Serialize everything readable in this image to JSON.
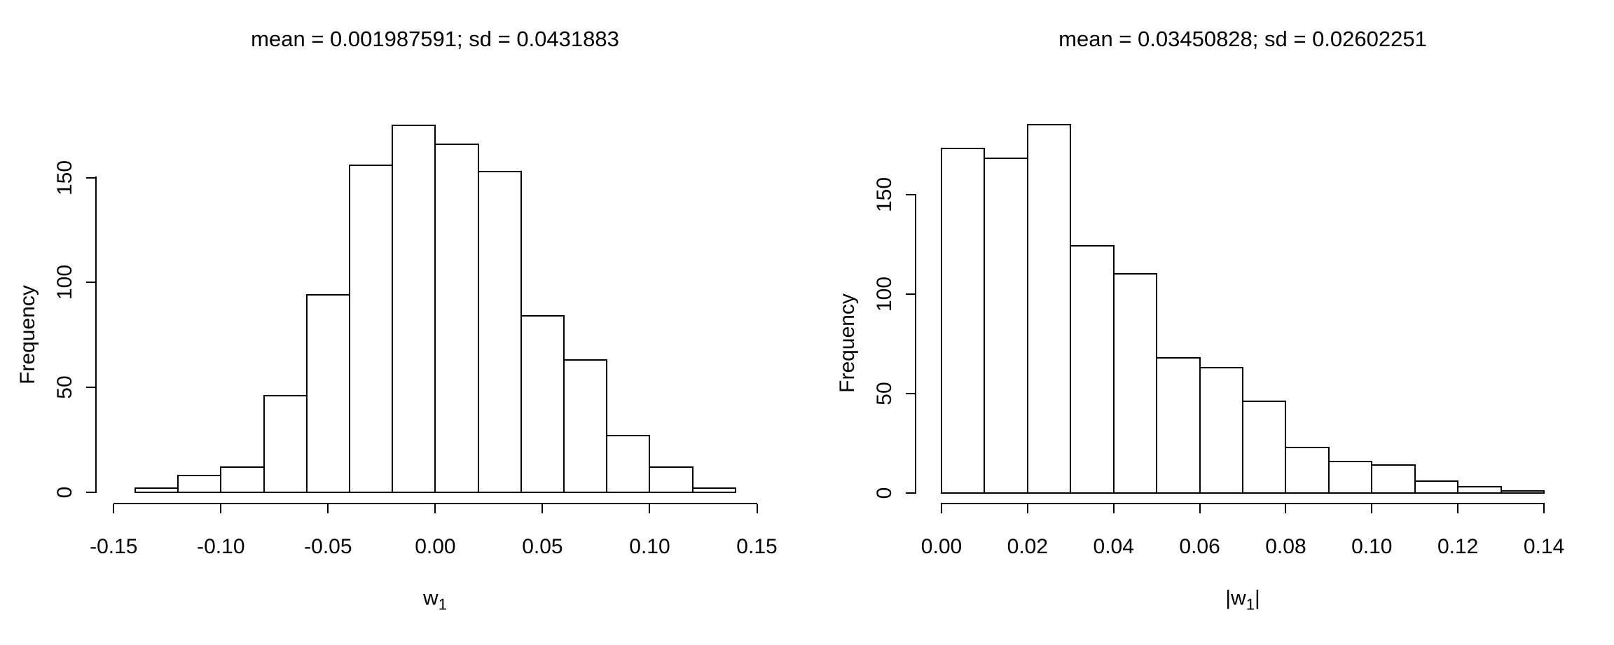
{
  "figure": {
    "background_color": "#ffffff",
    "stroke_color": "#000000",
    "bar_fill_color": "#ffffff",
    "text_color": "#000000"
  },
  "chart_data": [
    {
      "type": "bar",
      "subtype": "histogram",
      "title": "mean = 0.001987591; sd = 0.0431883",
      "xlabel": "w₁",
      "xlabel_parts": {
        "pre": "w",
        "sub": "1",
        "post": ""
      },
      "ylabel": "Frequency",
      "bin_width": 0.02,
      "bin_edges": [
        -0.14,
        -0.12,
        -0.1,
        -0.08,
        -0.06,
        -0.04,
        -0.02,
        0.0,
        0.02,
        0.04,
        0.06,
        0.08,
        0.1,
        0.12,
        0.14
      ],
      "counts": [
        2,
        8,
        12,
        46,
        94,
        156,
        175,
        166,
        153,
        84,
        63,
        27,
        12,
        2
      ],
      "xlim": [
        -0.15,
        0.15
      ],
      "ylim": [
        0,
        175
      ],
      "grid": false,
      "legend": false,
      "x_ticks": [
        {
          "value": -0.15,
          "label": "-0.15"
        },
        {
          "value": -0.1,
          "label": "-0.10"
        },
        {
          "value": -0.05,
          "label": "-0.05"
        },
        {
          "value": 0.0,
          "label": "0.00"
        },
        {
          "value": 0.05,
          "label": "0.05"
        },
        {
          "value": 0.1,
          "label": "0.10"
        },
        {
          "value": 0.15,
          "label": "0.15"
        }
      ],
      "y_ticks": [
        {
          "value": 0,
          "label": "0"
        },
        {
          "value": 50,
          "label": "50"
        },
        {
          "value": 100,
          "label": "100"
        },
        {
          "value": 150,
          "label": "150"
        }
      ]
    },
    {
      "type": "bar",
      "subtype": "histogram",
      "title": "mean = 0.03450828; sd = 0.02602251",
      "xlabel": "|w₁|",
      "xlabel_parts": {
        "pre": "|w",
        "sub": "1",
        "post": "|"
      },
      "ylabel": "Frequency",
      "bin_width": 0.01,
      "bin_edges": [
        0.0,
        0.01,
        0.02,
        0.03,
        0.04,
        0.05,
        0.06,
        0.07,
        0.08,
        0.09,
        0.1,
        0.11,
        0.12,
        0.13,
        0.14
      ],
      "counts": [
        173,
        168,
        185,
        124,
        110,
        68,
        63,
        46,
        23,
        16,
        14,
        6,
        3,
        1
      ],
      "xlim": [
        0.0,
        0.14
      ],
      "ylim": [
        0,
        185
      ],
      "grid": false,
      "legend": false,
      "x_ticks": [
        {
          "value": 0.0,
          "label": "0.00"
        },
        {
          "value": 0.02,
          "label": "0.02"
        },
        {
          "value": 0.04,
          "label": "0.04"
        },
        {
          "value": 0.06,
          "label": "0.06"
        },
        {
          "value": 0.08,
          "label": "0.08"
        },
        {
          "value": 0.1,
          "label": "0.10"
        },
        {
          "value": 0.12,
          "label": "0.12"
        },
        {
          "value": 0.14,
          "label": "0.14"
        }
      ],
      "y_ticks": [
        {
          "value": 0,
          "label": "0"
        },
        {
          "value": 50,
          "label": "50"
        },
        {
          "value": 100,
          "label": "100"
        },
        {
          "value": 150,
          "label": "150"
        }
      ]
    }
  ]
}
